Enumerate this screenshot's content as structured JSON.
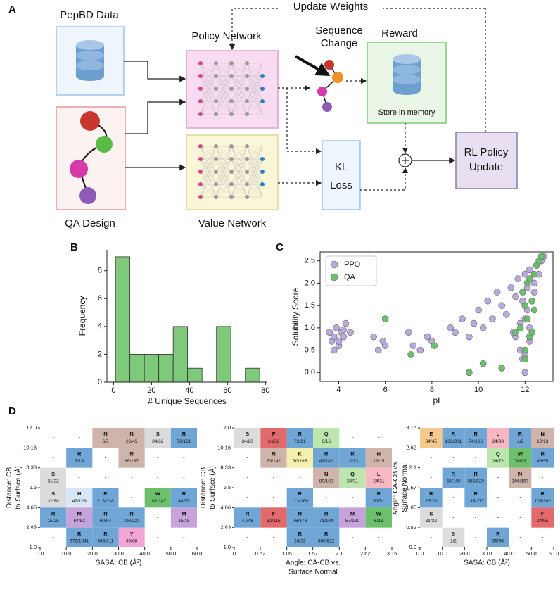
{
  "diagram": {
    "panel": "A",
    "update_weights": "Update Weights",
    "pepbd": "PepBD Data",
    "qa_design": "QA Design",
    "policy_network": "Policy Network",
    "value_network": "Value Network",
    "sequence_change": [
      "Sequence",
      "Change"
    ],
    "reward": "Reward",
    "store": "Store in memory",
    "kl_loss": [
      "KL",
      "Loss"
    ],
    "rl_update": [
      "RL Policy",
      "Update"
    ]
  },
  "chart_data": [
    {
      "type": "histogram",
      "panel": "B",
      "xlabel": "# Unique Sequences",
      "ylabel": "Frequency",
      "bins": [
        1,
        8.6,
        16.2,
        23.8,
        31.4,
        39,
        46.6,
        54.2,
        61.8,
        69.4,
        77
      ],
      "counts": [
        9,
        2,
        2,
        2,
        4,
        1,
        0,
        4,
        0,
        1
      ],
      "color": "#7fc97a",
      "xlim": [
        -3.5,
        81
      ],
      "ylim": [
        0,
        9.5
      ],
      "xticks": [
        0,
        20,
        40,
        60,
        80
      ],
      "yticks": [
        0,
        2,
        4,
        6,
        8
      ]
    },
    {
      "type": "scatter",
      "panel": "C",
      "xlabel": "pI",
      "ylabel": "Solubility Score",
      "legend": "upper left",
      "xlim": [
        3.2,
        13.2
      ],
      "ylim": [
        -0.2,
        2.7
      ],
      "xticks": [
        4,
        6,
        8,
        10,
        12
      ],
      "yticks": [
        {
          "value": 0,
          "label": "0.0"
        },
        {
          "value": 0.5,
          "label": "0.5"
        },
        {
          "value": 1,
          "label": "1.0"
        },
        {
          "value": 1.5,
          "label": "1.5"
        },
        {
          "value": 2,
          "label": "2.0"
        },
        {
          "value": 2.5,
          "label": "2.5"
        }
      ],
      "series": [
        {
          "name": "PPO",
          "color": "#b9a9dc",
          "x": [
            3.6,
            3.7,
            3.8,
            3.9,
            4.0,
            4.1,
            4.2,
            4.3,
            4.5,
            3.8,
            4.0,
            4.2,
            5.5,
            5.7,
            5.9,
            6.0,
            7.0,
            7.2,
            7.5,
            7.8,
            8.0,
            8.8,
            9.0,
            9.3,
            9.6,
            9.8,
            10.0,
            10.2,
            10.4,
            10.6,
            10.8,
            11.0,
            11.2,
            11.4,
            11.5,
            11.6,
            11.7,
            11.8,
            11.9,
            11.9,
            12.0,
            12.0,
            12.1,
            12.1,
            12.2,
            12.2,
            12.3,
            12.4,
            12.5,
            12.6,
            12.7,
            12.8,
            11.8,
            12.0,
            12.2,
            12.4,
            11.6,
            12.0
          ],
          "y": [
            0.9,
            0.7,
            0.8,
            1.0,
            0.6,
            0.9,
            0.8,
            1.1,
            0.9,
            0.5,
            0.7,
            0.95,
            0.8,
            0.5,
            0.7,
            0.6,
            0.9,
            0.6,
            0.5,
            0.8,
            0.7,
            1.0,
            0.9,
            1.2,
            0.8,
            1.1,
            1.4,
            1.0,
            1.6,
            1.2,
            1.8,
            1.5,
            1.3,
            1.9,
            0.9,
            1.7,
            2.1,
            1.1,
            1.6,
            0.3,
            2.2,
            0.0,
            1.4,
            1.9,
            0.7,
            2.3,
            1.6,
            2.0,
            2.4,
            2.2,
            2.5,
            2.6,
            0.5,
            1.2,
            1.0,
            1.8,
            0.8,
            0.4
          ]
        },
        {
          "name": "QA",
          "color": "#6cc06c",
          "x": [
            6.0,
            7.1,
            8.1,
            9.6,
            10.2,
            11.0,
            11.8,
            11.9,
            12.0,
            12.0,
            12.1,
            12.1,
            12.2,
            12.2,
            12.3,
            12.3,
            12.4,
            12.5,
            12.6,
            12.7,
            11.6,
            12.0,
            12.4
          ],
          "y": [
            1.2,
            0.4,
            0.6,
            0.0,
            0.2,
            0.1,
            1.0,
            1.8,
            0.5,
            1.5,
            2.0,
            1.2,
            0.8,
            2.1,
            1.6,
            0.9,
            2.2,
            2.4,
            2.5,
            2.6,
            0.9,
            0.3,
            1.4
          ]
        }
      ]
    },
    {
      "type": "heatmap",
      "panel": "D",
      "xlabel": [
        "SASA: CB (Å²)"
      ],
      "ylabel": [
        "Distance: CB",
        "to Surface (Å)"
      ],
      "xlim": [
        0,
        60
      ],
      "ylim": [
        1,
        12
      ],
      "xticks": [
        {
          "value": 0,
          "label": "0.0"
        },
        {
          "value": 10,
          "label": "10.0"
        },
        {
          "value": 20,
          "label": "20.0"
        },
        {
          "value": 30,
          "label": "30.0"
        },
        {
          "value": 40,
          "label": "40.0"
        },
        {
          "value": 50,
          "label": "50.0"
        },
        {
          "value": 60,
          "label": "60.0"
        }
      ],
      "yticks": [
        {
          "value": 1,
          "label": "1.0"
        },
        2.83,
        4.66,
        6.5,
        8.33,
        10.16,
        {
          "value": 12,
          "label": "12.0"
        }
      ],
      "rows": [
        [
          "-",
          "-",
          {
            "aa": "N",
            "count": "6/7"
          },
          {
            "aa": "N",
            "count": "22/45"
          },
          {
            "aa": "S",
            "count": "34/62"
          },
          {
            "aa": "R",
            "count": "70/121"
          }
        ],
        [
          "-",
          {
            "aa": "R",
            "count": "7/13"
          },
          "-",
          {
            "aa": "N",
            "count": "68/167"
          },
          "-",
          "-"
        ],
        [
          {
            "aa": "S",
            "count": "31/32"
          },
          "-",
          "-",
          "-",
          "-",
          "-"
        ],
        [
          {
            "aa": "S",
            "count": "32/80"
          },
          {
            "aa": "H",
            "count": "47/129"
          },
          {
            "aa": "R",
            "count": "213/328"
          },
          "-",
          {
            "aa": "W",
            "count": "102/147"
          },
          {
            "aa": "R",
            "count": "48/57"
          }
        ],
        [
          {
            "aa": "R",
            "count": "15/25"
          },
          {
            "aa": "M",
            "count": "64/82"
          },
          {
            "aa": "R",
            "count": "69/94"
          },
          {
            "aa": "R",
            "count": "108/321"
          },
          "-",
          {
            "aa": "M",
            "count": "15/18"
          }
        ],
        [
          "-",
          {
            "aa": "R",
            "count": "372/1041"
          },
          {
            "aa": "R",
            "count": "348/711"
          },
          {
            "aa": "Y",
            "count": "30/68"
          },
          "-",
          "-"
        ]
      ]
    },
    {
      "type": "heatmap",
      "xlabel": [
        "Angle: CA-CB vs.",
        "Surface Normal"
      ],
      "ylabel": [
        "Distance: CB",
        "to Surface (Å)"
      ],
      "xlim": [
        0,
        3.15
      ],
      "ylim": [
        1,
        12
      ],
      "xticks": [
        0,
        0.52,
        1.05,
        1.57,
        2.1,
        2.62,
        3.15
      ],
      "yticks": [
        {
          "value": 1,
          "label": "1.0"
        },
        2.83,
        4.66,
        6.5,
        8.33,
        10.16,
        {
          "value": 12,
          "label": "12.0"
        }
      ],
      "rows": [
        [
          {
            "aa": "S",
            "count": "34/80"
          },
          {
            "aa": "F",
            "count": "24/58"
          },
          {
            "aa": "R",
            "count": "72/81"
          },
          {
            "aa": "Q",
            "count": "6/16"
          },
          "-",
          "-"
        ],
        [
          "-",
          {
            "aa": "N",
            "count": "73/142"
          },
          {
            "aa": "K",
            "count": "70/195"
          },
          {
            "aa": "R",
            "count": "47/140"
          },
          {
            "aa": "R",
            "count": "12/13"
          },
          {
            "aa": "N",
            "count": "12/15"
          }
        ],
        [
          "-",
          "-",
          "-",
          {
            "aa": "N",
            "count": "80/168"
          },
          {
            "aa": "Q",
            "count": "24/31"
          },
          {
            "aa": "L",
            "count": "24/31"
          }
        ],
        [
          "-",
          "-",
          {
            "aa": "R",
            "count": "113/169"
          },
          "-",
          "-",
          {
            "aa": "R",
            "count": "50/51"
          }
        ],
        [
          {
            "aa": "R",
            "count": "47/48"
          },
          {
            "aa": "F",
            "count": "52/115"
          },
          {
            "aa": "R",
            "count": "76/173"
          },
          {
            "aa": "R",
            "count": "71/184"
          },
          {
            "aa": "M",
            "count": "57/130"
          },
          {
            "aa": "W",
            "count": "6/13"
          }
        ],
        [
          "-",
          "-",
          {
            "aa": "R",
            "count": "24/53"
          },
          {
            "aa": "R",
            "count": "380/822"
          },
          "-",
          "-"
        ]
      ]
    },
    {
      "type": "heatmap",
      "xlabel": [
        "SASA: CB (Å²)"
      ],
      "ylabel": [
        "Angle: CA-CB vs.",
        "Surface Normal"
      ],
      "xlim": [
        0,
        60
      ],
      "ylim": [
        0,
        3.15
      ],
      "xticks": [
        {
          "value": 0,
          "label": "0.0"
        },
        {
          "value": 10,
          "label": "10.0"
        },
        {
          "value": 20,
          "label": "20.0"
        },
        {
          "value": 30,
          "label": "30.0"
        },
        {
          "value": 40,
          "label": "40.0"
        },
        {
          "value": 50,
          "label": "50.0"
        },
        {
          "value": 60,
          "label": "60.0"
        }
      ],
      "yticks": [
        {
          "value": 0,
          "label": "0.0"
        },
        0.52,
        1.05,
        1.57,
        2.1,
        2.62,
        3.15
      ],
      "rows": [
        [
          {
            "aa": "E",
            "count": "34/45"
          },
          {
            "aa": "R",
            "count": "108/301"
          },
          {
            "aa": "R",
            "count": "74/106"
          },
          {
            "aa": "L",
            "count": "24/38"
          },
          {
            "aa": "R",
            "count": "1/2"
          },
          {
            "aa": "N",
            "count": "12/13"
          }
        ],
        [
          "-",
          "-",
          "-",
          {
            "aa": "Q",
            "count": "24/72"
          },
          {
            "aa": "W",
            "count": "76/93"
          },
          {
            "aa": "R",
            "count": "48/55"
          }
        ],
        [
          "-",
          {
            "aa": "R",
            "count": "68/169"
          },
          {
            "aa": "R",
            "count": "386/529"
          },
          "-",
          {
            "aa": "N",
            "count": "100/157"
          },
          "-"
        ],
        [
          {
            "aa": "R",
            "count": "15/20"
          },
          "-",
          {
            "aa": "R",
            "count": "135/277"
          },
          "-",
          "-",
          {
            "aa": "R",
            "count": "103/302"
          }
        ],
        [
          {
            "aa": "S",
            "count": "31/32"
          },
          "-",
          "-",
          "-",
          "-",
          {
            "aa": "F",
            "count": "24/55"
          }
        ],
        [
          "-",
          {
            "aa": "S",
            "count": "1/2"
          },
          "-",
          {
            "aa": "R",
            "count": "59/94"
          },
          "-",
          "-"
        ]
      ]
    }
  ],
  "aa_colors": {
    "R": "#6fa6d6",
    "N": "#cfb4ac",
    "S": "#dcdcdc",
    "W": "#6cc06c",
    "M": "#c6a3da",
    "H": "#d9e6f6",
    "Y": "#f3a6d6",
    "F": "#e36a6a",
    "Q": "#bde6ae",
    "K": "#f4f0ad",
    "L": "#f7b7c3",
    "E": "#f8c98c"
  }
}
